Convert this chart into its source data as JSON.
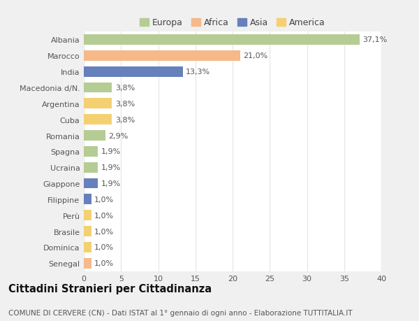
{
  "countries": [
    "Albania",
    "Marocco",
    "India",
    "Macedonia d/N.",
    "Argentina",
    "Cuba",
    "Romania",
    "Spagna",
    "Ucraina",
    "Giappone",
    "Filippine",
    "Perù",
    "Brasile",
    "Dominica",
    "Senegal"
  ],
  "values": [
    37.1,
    21.0,
    13.3,
    3.8,
    3.8,
    3.8,
    2.9,
    1.9,
    1.9,
    1.9,
    1.0,
    1.0,
    1.0,
    1.0,
    1.0
  ],
  "labels": [
    "37,1%",
    "21,0%",
    "13,3%",
    "3,8%",
    "3,8%",
    "3,8%",
    "2,9%",
    "1,9%",
    "1,9%",
    "1,9%",
    "1,0%",
    "1,0%",
    "1,0%",
    "1,0%",
    "1,0%"
  ],
  "colors": [
    "#b5cc94",
    "#f5b98a",
    "#6680bb",
    "#b5cc94",
    "#f5d070",
    "#f5d070",
    "#b5cc94",
    "#b5cc94",
    "#b5cc94",
    "#6680bb",
    "#6680bb",
    "#f5d070",
    "#f5d070",
    "#f5d070",
    "#f5b98a"
  ],
  "continent_colors": {
    "Europa": "#b5cc94",
    "Africa": "#f5b98a",
    "Asia": "#6680bb",
    "America": "#f5d070"
  },
  "title": "Cittadini Stranieri per Cittadinanza",
  "subtitle": "COMUNE DI CERVERE (CN) - Dati ISTAT al 1° gennaio di ogni anno - Elaborazione TUTTITALIA.IT",
  "xlim": [
    0,
    40
  ],
  "xticks": [
    0,
    5,
    10,
    15,
    20,
    25,
    30,
    35,
    40
  ],
  "outer_bg": "#f0f0f0",
  "plot_bg": "#ffffff",
  "grid_color": "#e8e8e8",
  "bar_height": 0.65,
  "title_fontsize": 10.5,
  "subtitle_fontsize": 7.5,
  "label_fontsize": 8,
  "tick_fontsize": 8,
  "legend_fontsize": 9
}
